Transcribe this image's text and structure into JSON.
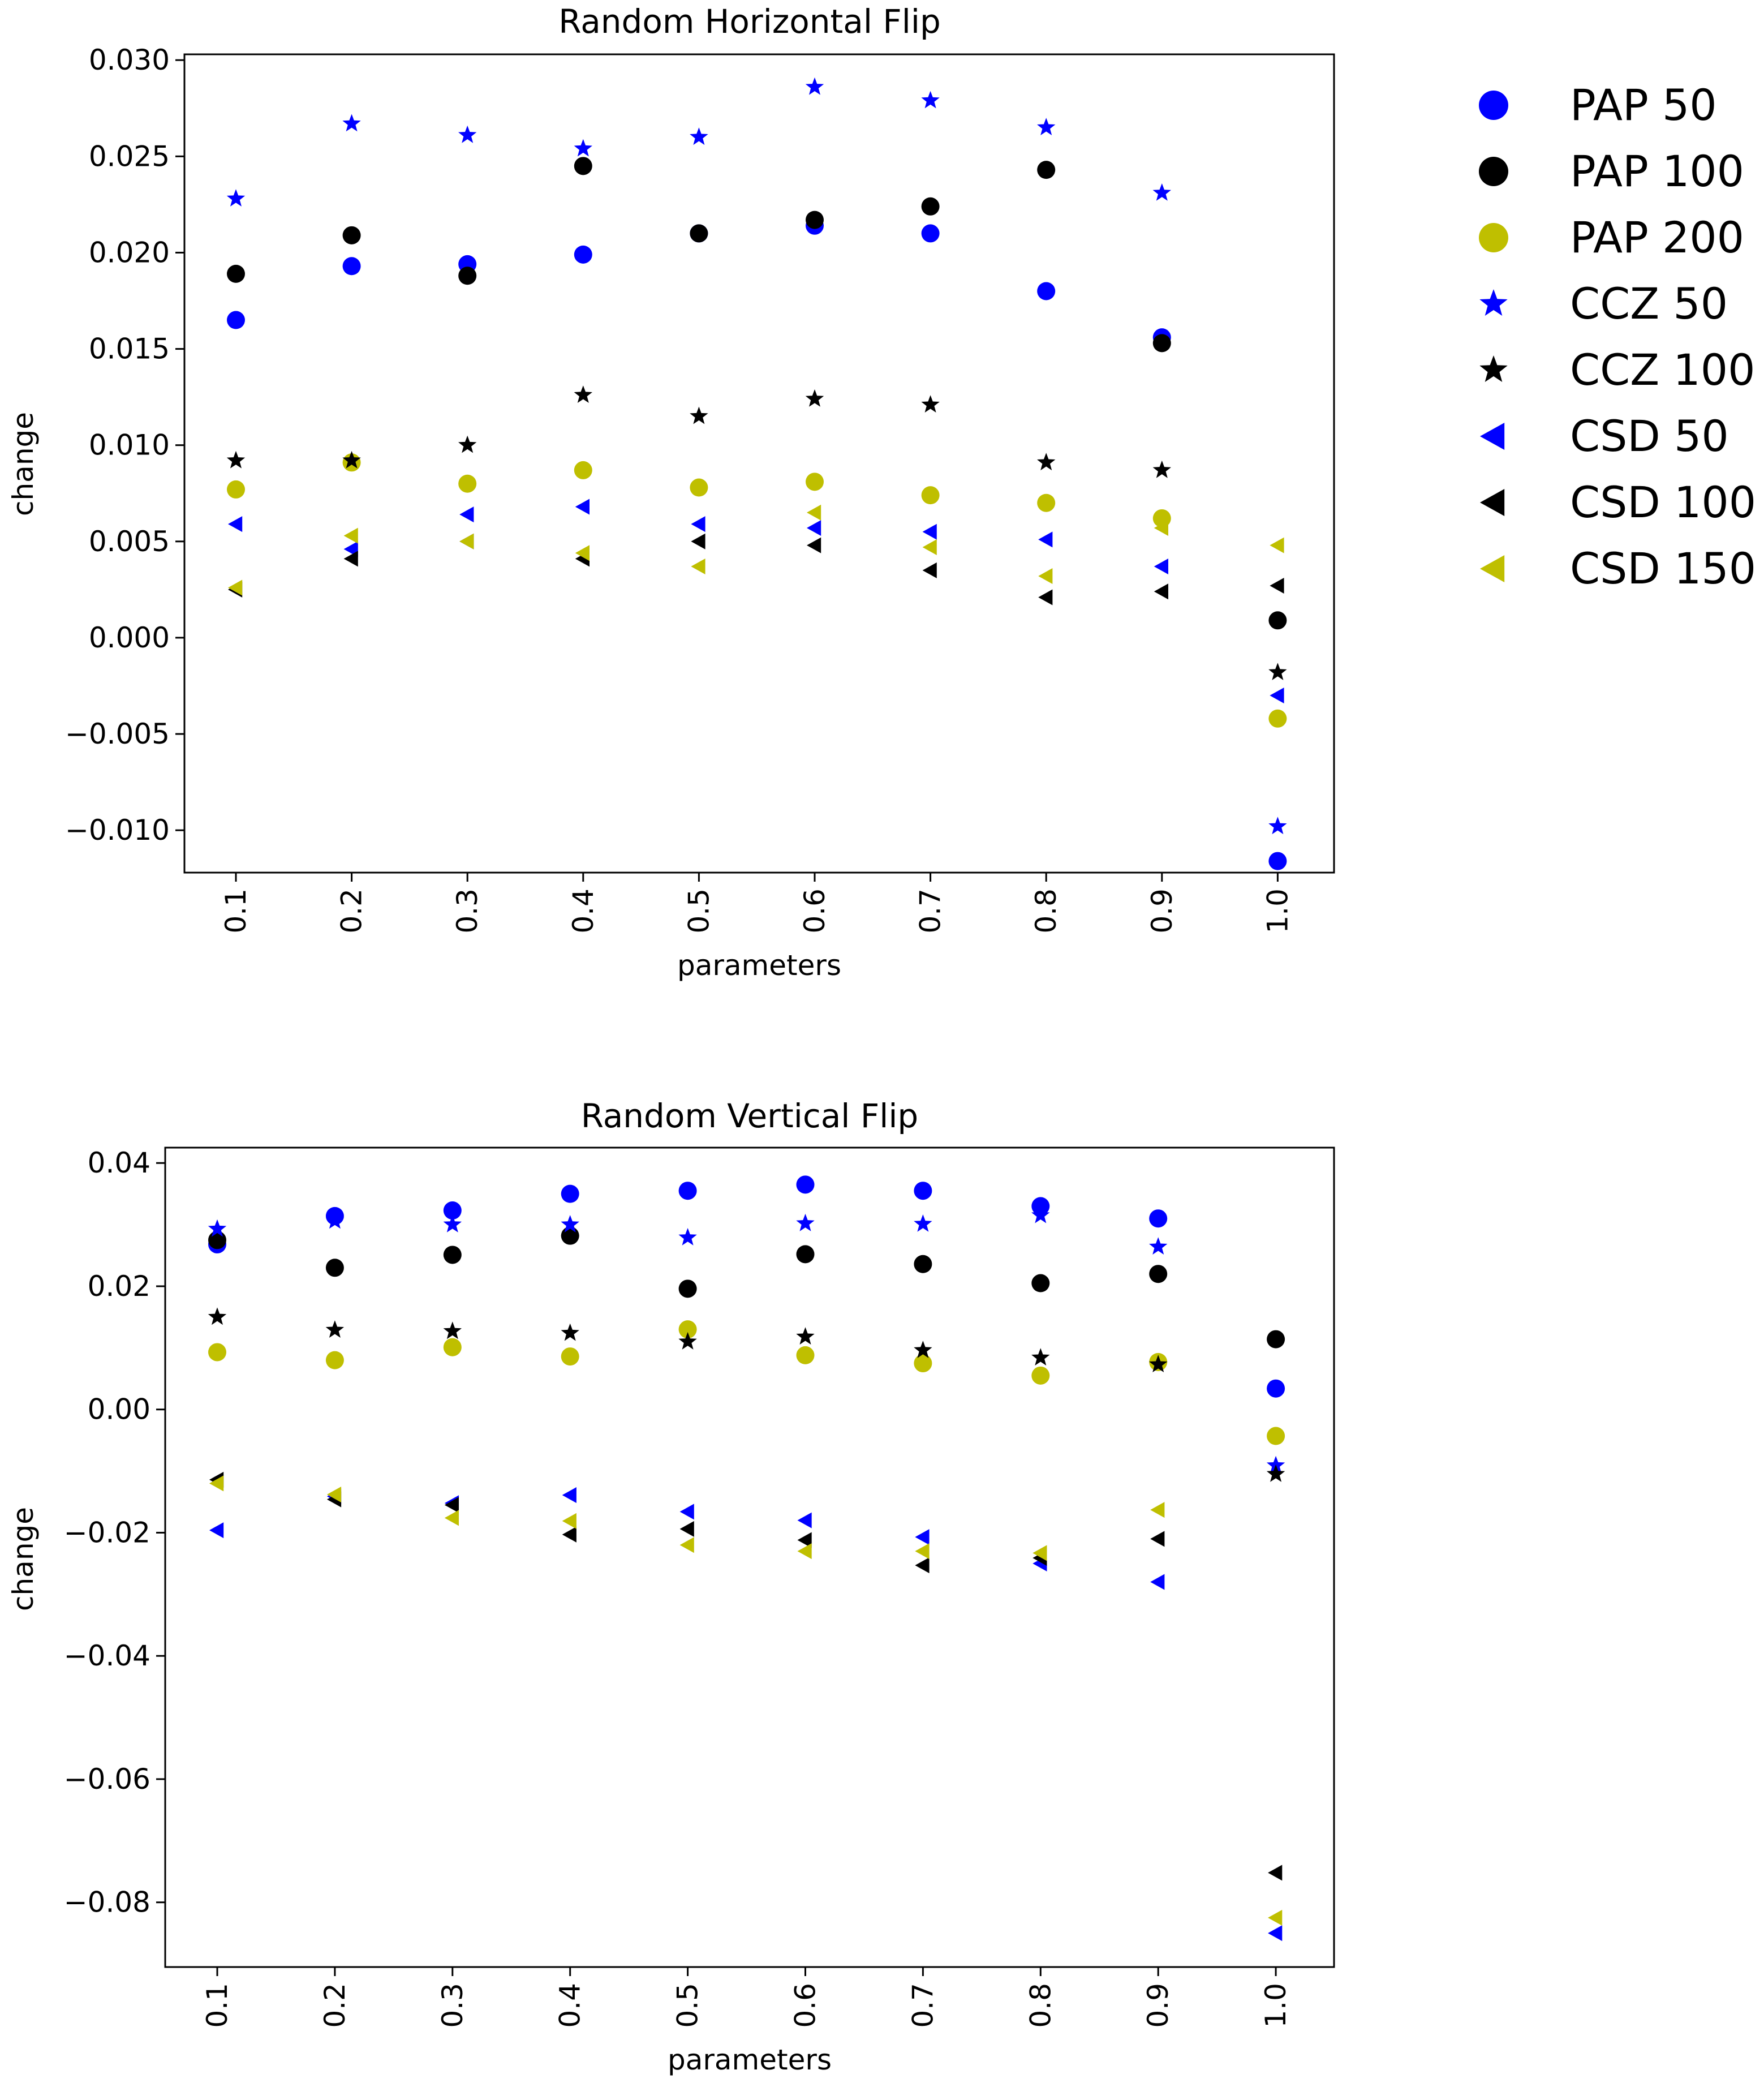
{
  "chart_data": [
    {
      "type": "scatter",
      "title": "Random Horizontal Flip",
      "xlabel": "parameters",
      "ylabel": "change",
      "categories": [
        "0.1",
        "0.2",
        "0.3",
        "0.4",
        "0.5",
        "0.6",
        "0.7",
        "0.8",
        "0.9",
        "1.0"
      ],
      "ylim": [
        -0.0122,
        0.0303
      ],
      "yticks": [
        0.03,
        0.025,
        0.02,
        0.015,
        0.01,
        0.005,
        0.0,
        -0.005,
        -0.01
      ],
      "ytick_labels": [
        "0.030",
        "0.025",
        "0.020",
        "0.015",
        "0.010",
        "0.005",
        "0.000",
        "−0.005",
        "−0.010"
      ],
      "series": [
        {
          "name": "PAP 50",
          "marker": "circle",
          "color": "#0000ff",
          "values": [
            0.0165,
            0.0193,
            0.0194,
            0.0199,
            0.021,
            0.0214,
            0.021,
            0.018,
            0.0156,
            -0.0116
          ]
        },
        {
          "name": "PAP 100",
          "marker": "circle",
          "color": "#000000",
          "values": [
            0.0189,
            0.0209,
            0.0188,
            0.0245,
            0.021,
            0.0217,
            0.0224,
            0.0243,
            0.0153,
            0.0009
          ]
        },
        {
          "name": "PAP 200",
          "marker": "circle",
          "color": "#bfbf00",
          "values": [
            0.0077,
            0.0091,
            0.008,
            0.0087,
            0.0078,
            0.0081,
            0.0074,
            0.007,
            0.0062,
            -0.0042
          ]
        },
        {
          "name": "CCZ 50",
          "marker": "star",
          "color": "#0000ff",
          "values": [
            0.0228,
            0.0267,
            0.0261,
            0.0254,
            0.026,
            0.0286,
            0.0279,
            0.0265,
            0.0231,
            -0.0098
          ]
        },
        {
          "name": "CCZ 100",
          "marker": "star",
          "color": "#000000",
          "values": [
            0.0092,
            0.0092,
            0.01,
            0.0126,
            0.0115,
            0.0124,
            0.0121,
            0.0091,
            0.0087,
            -0.0018
          ]
        },
        {
          "name": "CSD 50",
          "marker": "triangle-left",
          "color": "#0000ff",
          "values": [
            0.0059,
            0.0046,
            0.0064,
            0.0068,
            0.0059,
            0.0057,
            0.0055,
            0.0051,
            0.0037,
            -0.003
          ]
        },
        {
          "name": "CSD 100",
          "marker": "triangle-left",
          "color": "#000000",
          "values": [
            0.0025,
            0.0041,
            0.005,
            0.0041,
            0.005,
            0.0048,
            0.0035,
            0.0021,
            0.0024,
            0.0027
          ]
        },
        {
          "name": "CSD 150",
          "marker": "triangle-left",
          "color": "#bfbf00",
          "values": [
            0.0026,
            0.0053,
            0.005,
            0.0044,
            0.0037,
            0.0065,
            0.0047,
            0.0032,
            0.0057,
            0.0048
          ]
        }
      ]
    },
    {
      "type": "scatter",
      "title": "Random Vertical Flip",
      "xlabel": "parameters",
      "ylabel": "change",
      "categories": [
        "0.1",
        "0.2",
        "0.3",
        "0.4",
        "0.5",
        "0.6",
        "0.7",
        "0.8",
        "0.9",
        "1.0"
      ],
      "ylim": [
        -0.0905,
        0.0425
      ],
      "yticks": [
        0.04,
        0.02,
        0.0,
        -0.02,
        -0.04,
        -0.06,
        -0.08
      ],
      "ytick_labels": [
        "0.04",
        "0.02",
        "0.00",
        "−0.02",
        "−0.04",
        "−0.06",
        "−0.08"
      ],
      "series": [
        {
          "name": "PAP 50",
          "marker": "circle",
          "color": "#0000ff",
          "values": [
            0.0268,
            0.0314,
            0.0323,
            0.035,
            0.0355,
            0.0365,
            0.0355,
            0.033,
            0.031,
            0.0034
          ]
        },
        {
          "name": "PAP 100",
          "marker": "circle",
          "color": "#000000",
          "values": [
            0.0275,
            0.023,
            0.0251,
            0.0282,
            0.0196,
            0.0252,
            0.0236,
            0.0205,
            0.022,
            0.0114
          ]
        },
        {
          "name": "PAP 200",
          "marker": "circle",
          "color": "#bfbf00",
          "values": [
            0.0093,
            0.008,
            0.0101,
            0.0086,
            0.013,
            0.0088,
            0.0075,
            0.0055,
            0.0077,
            -0.0043
          ]
        },
        {
          "name": "CCZ 50",
          "marker": "star",
          "color": "#0000ff",
          "values": [
            0.0293,
            0.0306,
            0.03,
            0.03,
            0.0279,
            0.0302,
            0.0301,
            0.0315,
            0.0264,
            -0.0091
          ]
        },
        {
          "name": "CCZ 100",
          "marker": "star",
          "color": "#000000",
          "values": [
            0.015,
            0.0129,
            0.0127,
            0.0124,
            0.011,
            0.0118,
            0.0096,
            0.0084,
            0.0073,
            -0.0105
          ]
        },
        {
          "name": "CSD 50",
          "marker": "triangle-left",
          "color": "#0000ff",
          "values": [
            -0.0196,
            -0.0141,
            -0.0152,
            -0.0139,
            -0.0166,
            -0.018,
            -0.0207,
            -0.025,
            -0.028,
            -0.085
          ]
        },
        {
          "name": "CSD 100",
          "marker": "triangle-left",
          "color": "#000000",
          "values": [
            -0.0114,
            -0.0146,
            -0.0155,
            -0.0203,
            -0.0194,
            -0.0212,
            -0.0253,
            -0.0241,
            -0.021,
            -0.0752
          ]
        },
        {
          "name": "CSD 150",
          "marker": "triangle-left",
          "color": "#bfbf00",
          "values": [
            -0.012,
            -0.0138,
            -0.0176,
            -0.0181,
            -0.022,
            -0.023,
            -0.023,
            -0.0233,
            -0.0163,
            -0.0825
          ]
        }
      ]
    }
  ],
  "legend": {
    "placement": "top-right",
    "entries": [
      {
        "label": "PAP 50",
        "marker": "circle",
        "color": "#0000ff"
      },
      {
        "label": "PAP 100",
        "marker": "circle",
        "color": "#000000"
      },
      {
        "label": "PAP 200",
        "marker": "circle",
        "color": "#bfbf00"
      },
      {
        "label": "CCZ 50",
        "marker": "star",
        "color": "#0000ff"
      },
      {
        "label": "CCZ 100",
        "marker": "star",
        "color": "#000000"
      },
      {
        "label": "CSD 50",
        "marker": "triangle-left",
        "color": "#0000ff"
      },
      {
        "label": "CSD 100",
        "marker": "triangle-left",
        "color": "#000000"
      },
      {
        "label": "CSD 150",
        "marker": "triangle-left",
        "color": "#bfbf00"
      }
    ]
  }
}
